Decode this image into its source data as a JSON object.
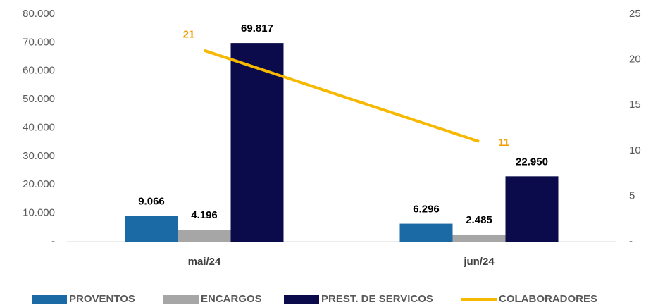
{
  "chart_data": {
    "type": "bar",
    "categories": [
      "mai/24",
      "jun/24"
    ],
    "series": [
      {
        "name": "PROVENTOS",
        "color": "#1b6aa5",
        "values": [
          9066,
          6296
        ],
        "value_labels": [
          "9.066",
          "6.296"
        ]
      },
      {
        "name": "ENCARGOS",
        "color": "#a6a6a6",
        "values": [
          4196,
          2485
        ],
        "value_labels": [
          "4.196",
          "2.485"
        ]
      },
      {
        "name": "PREST. DE SERVICOS",
        "color": "#0b0b4b",
        "values": [
          69817,
          22950
        ],
        "value_labels": [
          "69.817",
          "22.950"
        ]
      },
      {
        "name": "COLABORADORES",
        "type": "line",
        "axis": "y2",
        "color": "#f7b800",
        "label_color": "#f29c00",
        "values": [
          21,
          11
        ]
      }
    ],
    "ylim": [
      0,
      80000
    ],
    "yticks": [
      {
        "value": 0,
        "label": "-"
      },
      {
        "value": 10000,
        "label": "10.000"
      },
      {
        "value": 20000,
        "label": "20.000"
      },
      {
        "value": 30000,
        "label": "30.000"
      },
      {
        "value": 40000,
        "label": "40.000"
      },
      {
        "value": 50000,
        "label": "50.000"
      },
      {
        "value": 60000,
        "label": "60.000"
      },
      {
        "value": 70000,
        "label": "70.000"
      },
      {
        "value": 80000,
        "label": "80.000"
      }
    ],
    "y2lim": [
      0,
      25
    ],
    "y2ticks": [
      {
        "value": 0,
        "label": "-"
      },
      5,
      10,
      15,
      20,
      25
    ],
    "legend": "bottom"
  }
}
